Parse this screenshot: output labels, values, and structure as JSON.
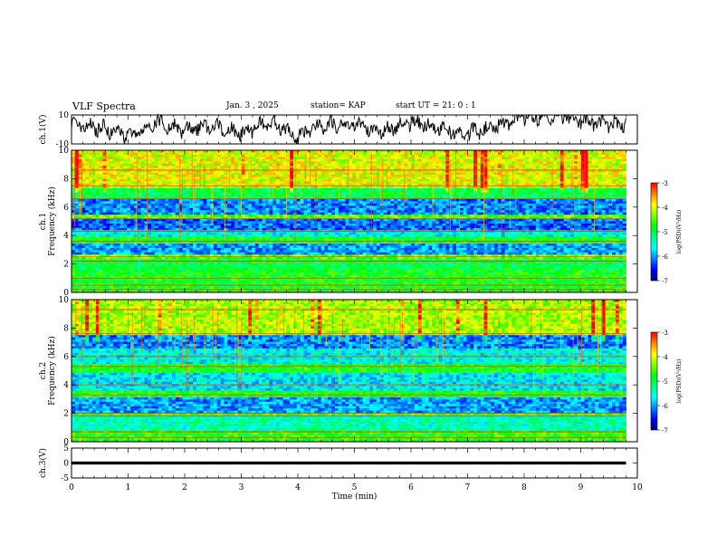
{
  "header": {
    "title": "VLF Spectra",
    "date": "Jan. 3 , 2025",
    "station": "station= KAP",
    "start": "start UT =  21: 0 : 1"
  },
  "colorbar_scale": {
    "label": "log(PSD)(V²/Hz)",
    "ticks": [
      "-3",
      "-4",
      "-5",
      "-6",
      "-7"
    ],
    "colors": [
      "#000080",
      "#0000ff",
      "#0080ff",
      "#00ffff",
      "#00ff80",
      "#00ff00",
      "#80ff00",
      "#ffff00",
      "#ff8000",
      "#ff0000",
      "#ffffff"
    ]
  },
  "chart_data": [
    {
      "type": "line",
      "panel": "ch1-waveform",
      "ylabel": "ch.1(V)",
      "ylim": [
        -10,
        10
      ],
      "ytick_labels": [
        "10",
        "-10"
      ],
      "x": [
        0,
        0.5,
        1,
        1.5,
        2,
        2.5,
        3,
        3.5,
        4,
        4.5,
        5,
        5.5,
        6,
        6.5,
        7,
        7.5,
        8,
        8.5,
        9,
        9.5,
        9.8
      ],
      "values": [
        3,
        1,
        -4,
        5,
        0,
        3,
        -3,
        6,
        -5,
        4,
        3,
        -2,
        5,
        1,
        -3,
        2,
        8,
        10,
        6,
        3,
        4
      ],
      "xlim": [
        0,
        10
      ],
      "color": "#000000"
    },
    {
      "type": "heatmap",
      "panel": "ch1-spectrogram",
      "ylabel": "ch.1\nFrequency (kHz)",
      "ylim": [
        0,
        10
      ],
      "ytick_labels": [
        "0",
        "2",
        "4",
        "6",
        "8",
        "10"
      ],
      "xlim": [
        0,
        10
      ],
      "data_extent_min": 9.8,
      "value_label": "log(PSD)(V²/Hz)",
      "value_range": [
        -7,
        -3
      ],
      "bands": [
        {
          "from": 0.0,
          "to": 1.5,
          "level": -4.8
        },
        {
          "from": 1.5,
          "to": 2.4,
          "level": -5.0
        },
        {
          "from": 2.4,
          "to": 2.7,
          "level": -4.4
        },
        {
          "from": 2.7,
          "to": 3.5,
          "level": -6.0
        },
        {
          "from": 3.5,
          "to": 3.9,
          "level": -4.8
        },
        {
          "from": 3.9,
          "to": 4.3,
          "level": -5.6
        },
        {
          "from": 4.3,
          "to": 5.1,
          "level": -6.2
        },
        {
          "from": 5.1,
          "to": 5.4,
          "level": -4.5
        },
        {
          "from": 5.4,
          "to": 6.5,
          "level": -6.1
        },
        {
          "from": 6.5,
          "to": 7.4,
          "level": -5.0
        },
        {
          "from": 7.4,
          "to": 10.0,
          "level": -4.0
        }
      ],
      "lines_khz": [
        0.2,
        0.5,
        1.0,
        2.2,
        2.5,
        3.6,
        4.3,
        5.2,
        6.6,
        7.5,
        8.6
      ]
    },
    {
      "type": "heatmap",
      "panel": "ch2-spectrogram",
      "ylabel": "ch.2\nFrequency (kHz)",
      "ylim": [
        0,
        10
      ],
      "ytick_labels": [
        "0",
        "2",
        "4",
        "6",
        "8",
        "10"
      ],
      "xlim": [
        0,
        10
      ],
      "data_extent_min": 9.8,
      "value_label": "log(PSD)(V²/Hz)",
      "value_range": [
        -7,
        -3
      ],
      "bands": [
        {
          "from": 0.0,
          "to": 0.8,
          "level": -4.7
        },
        {
          "from": 0.8,
          "to": 1.8,
          "level": -5.4
        },
        {
          "from": 1.8,
          "to": 2.1,
          "level": -4.6
        },
        {
          "from": 2.1,
          "to": 3.2,
          "level": -6.0
        },
        {
          "from": 3.2,
          "to": 3.6,
          "level": -4.8
        },
        {
          "from": 3.6,
          "to": 4.8,
          "level": -5.7
        },
        {
          "from": 4.8,
          "to": 5.4,
          "level": -4.8
        },
        {
          "from": 5.4,
          "to": 6.5,
          "level": -5.6
        },
        {
          "from": 6.5,
          "to": 7.5,
          "level": -6.1
        },
        {
          "from": 7.5,
          "to": 10.0,
          "level": -4.2
        }
      ],
      "lines_khz": [
        0.3,
        0.7,
        1.8,
        2.0,
        3.3,
        4.0,
        5.3,
        6.0,
        7.6,
        9.3
      ]
    },
    {
      "type": "line",
      "panel": "ch3-waveform",
      "ylabel": "ch.3(V)",
      "ylim": [
        -5,
        5
      ],
      "ytick_labels": [
        "5",
        "0",
        "-5"
      ],
      "xlabel": "Time (min)",
      "xtick_labels": [
        "0",
        "1",
        "2",
        "3",
        "4",
        "5",
        "6",
        "7",
        "8",
        "9",
        "10"
      ],
      "xlim": [
        0,
        10
      ],
      "x": [
        0,
        9.8
      ],
      "values": [
        0,
        0
      ],
      "band": [
        -0.5,
        0.5
      ],
      "color": "#000000"
    }
  ]
}
